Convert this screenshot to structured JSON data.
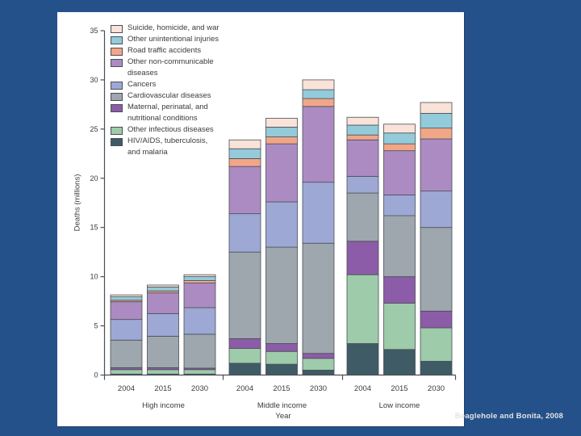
{
  "slide": {
    "citation": "Beaglehole and Bonita, 2008",
    "background_color": "#24518A",
    "panel_color": "#FFFFFF"
  },
  "chart_data": {
    "type": "bar",
    "stacked": true,
    "title": "",
    "ylabel": "Deaths (millions)",
    "xlabel": "Year",
    "ylim": [
      0,
      35
    ],
    "ytick_step": 5,
    "grid": false,
    "legend_position": "top-left",
    "axis_color": "#4a4e55",
    "groups": [
      {
        "label": "High income",
        "years": [
          "2004",
          "2015",
          "2030"
        ]
      },
      {
        "label": "Middle income",
        "years": [
          "2004",
          "2015",
          "2030"
        ]
      },
      {
        "label": "Low income",
        "years": [
          "2004",
          "2015",
          "2030"
        ]
      }
    ],
    "bar_order": [
      "High income 2004",
      "High income 2015",
      "High income 2030",
      "Middle income 2004",
      "Middle income 2015",
      "Middle income 2030",
      "Low income 2004",
      "Low income 2015",
      "Low income 2030"
    ],
    "series_note": "listed top-of-stack first; values in millions of deaths per bar_order",
    "series": [
      {
        "name": "Suicide, homicide, and war",
        "legend_label": "Suicide, homicide, and war",
        "color": "#F9E2D8",
        "values": [
          0.2,
          0.2,
          0.2,
          0.9,
          0.9,
          1.0,
          0.8,
          0.9,
          1.1
        ]
      },
      {
        "name": "Other unintentional injuries",
        "legend_label": "Other unintentional injuries",
        "color": "#93CBDA",
        "values": [
          0.35,
          0.4,
          0.4,
          1.0,
          1.0,
          0.9,
          1.0,
          1.1,
          1.5
        ]
      },
      {
        "name": "Road traffic accidents",
        "legend_label": "Road traffic accidents",
        "color": "#F2A688",
        "values": [
          0.15,
          0.2,
          0.25,
          0.8,
          0.7,
          0.8,
          0.5,
          0.7,
          1.1
        ]
      },
      {
        "name": "Other non-communicable diseases",
        "legend_label": "Other non-communicable\ndiseases",
        "color": "#AC8BC3",
        "values": [
          1.8,
          2.1,
          2.5,
          4.8,
          5.9,
          7.7,
          3.7,
          4.5,
          5.3
        ]
      },
      {
        "name": "Cancers",
        "legend_label": "Cancers",
        "color": "#9DA8D4",
        "values": [
          2.1,
          2.3,
          2.7,
          3.9,
          4.6,
          6.2,
          1.7,
          2.1,
          3.7
        ]
      },
      {
        "name": "Cardiovascular diseases",
        "legend_label": "Cardiovascular diseases",
        "color": "#9EA7AE",
        "values": [
          2.8,
          3.2,
          3.45,
          8.8,
          9.8,
          11.2,
          4.9,
          6.2,
          8.5
        ]
      },
      {
        "name": "Maternal, perinatal, and nutritional conditions",
        "legend_label": "Maternal, perinatal, and\nnutritional conditions",
        "color": "#8C5CA8",
        "values": [
          0.2,
          0.2,
          0.15,
          1.0,
          0.8,
          0.5,
          3.4,
          2.7,
          1.7
        ]
      },
      {
        "name": "Other infectious diseases",
        "legend_label": "Other infectious diseases",
        "color": "#9ECBAA",
        "values": [
          0.45,
          0.45,
          0.45,
          1.5,
          1.3,
          1.2,
          7.0,
          4.7,
          3.4
        ]
      },
      {
        "name": "HIV/AIDS, tuberculosis, and malaria",
        "legend_label": "HIV/AIDS, tuberculosis,\nand malaria",
        "color": "#3E5B66",
        "values": [
          0.1,
          0.1,
          0.1,
          1.2,
          1.1,
          0.5,
          3.2,
          2.6,
          1.4
        ]
      }
    ]
  }
}
